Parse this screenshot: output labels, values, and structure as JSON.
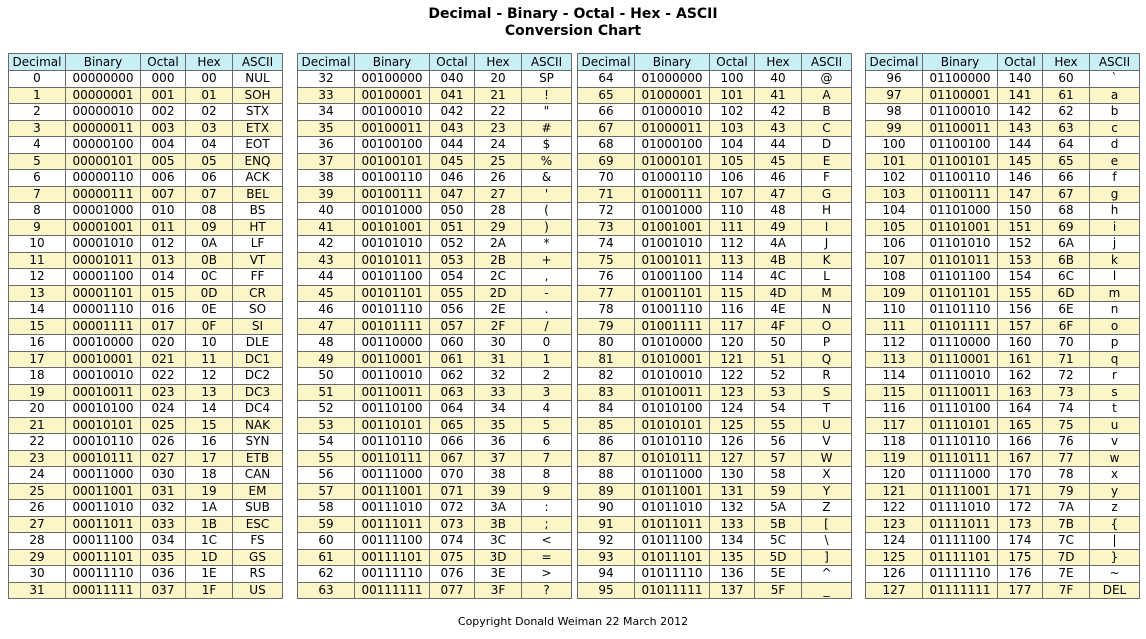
{
  "title": {
    "line1": "Decimal - Binary - Octal - Hex - ASCII",
    "line2": "Conversion Chart"
  },
  "headers": [
    "Decimal",
    "Binary",
    "Octal",
    "Hex",
    "ASCII"
  ],
  "ascii_0_31": [
    "NUL",
    "SOH",
    "STX",
    "ETX",
    "EOT",
    "ENQ",
    "ACK",
    "BEL",
    "BS",
    "HT",
    "LF",
    "VT",
    "FF",
    "CR",
    "SO",
    "SI",
    "DLE",
    "DC1",
    "DC2",
    "DC3",
    "DC4",
    "NAK",
    "SYN",
    "ETB",
    "CAN",
    "EM",
    "SUB",
    "ESC",
    "FS",
    "GS",
    "RS",
    "US"
  ],
  "ascii_32_63": [
    "SP",
    "!",
    "\"",
    "#",
    "$",
    "%",
    "&",
    "'",
    "(",
    ")",
    "*",
    "+",
    ",",
    "-",
    ".",
    "/",
    "0",
    "1",
    "2",
    "3",
    "4",
    "5",
    "6",
    "7",
    "8",
    "9",
    ":",
    ";",
    "<",
    "=",
    ">",
    "?"
  ],
  "ascii_64_95": [
    "@",
    "A",
    "B",
    "C",
    "D",
    "E",
    "F",
    "G",
    "H",
    "I",
    "J",
    "K",
    "L",
    "M",
    "N",
    "O",
    "P",
    "Q",
    "R",
    "S",
    "T",
    "U",
    "V",
    "W",
    "X",
    "Y",
    "Z",
    "[",
    "\\",
    "]",
    "^",
    "_"
  ],
  "ascii_96_127": [
    "`",
    "a",
    "b",
    "c",
    "d",
    "e",
    "f",
    "g",
    "h",
    "i",
    "j",
    "k",
    "l",
    "m",
    "n",
    "o",
    "p",
    "q",
    "r",
    "s",
    "t",
    "u",
    "v",
    "w",
    "x",
    "y",
    "z",
    "{",
    "|",
    "}",
    "~",
    "DEL"
  ],
  "footer": "Copyright Donald Weiman 22 March 2012",
  "colors": {
    "header_bg": "#c8eef6",
    "alt_row_bg": "#fbf6c7",
    "border": "#6b6b6b"
  }
}
